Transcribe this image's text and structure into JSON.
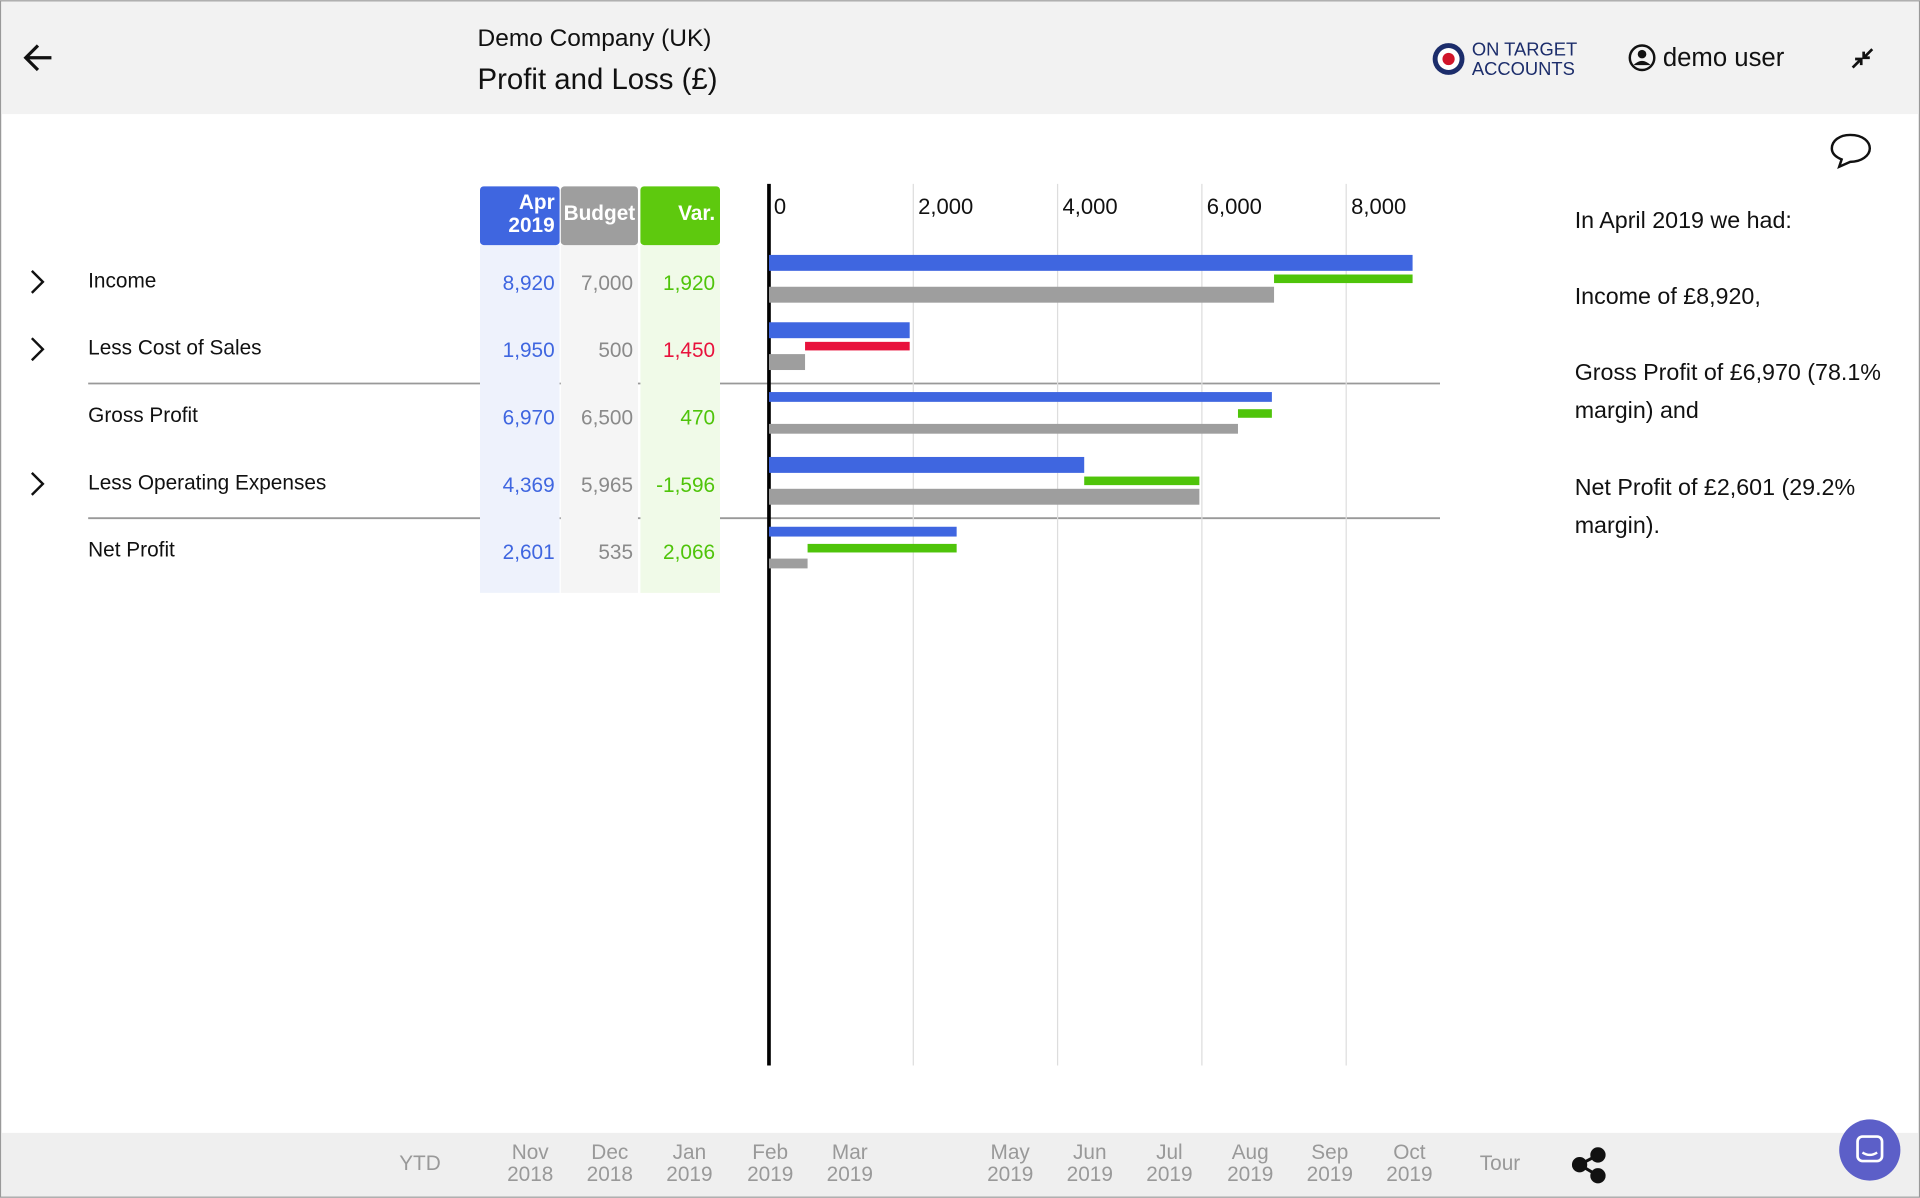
{
  "header": {
    "company": "Demo Company (UK)",
    "title": "Profit and Loss (£)",
    "brand": [
      "ON TARGET",
      "ACCOUNTS"
    ],
    "user": "demo user"
  },
  "table": {
    "columns": [
      [
        "Apr",
        "2019"
      ],
      "Budget",
      "Var."
    ],
    "rows": [
      {
        "label": "Income",
        "values": [
          8920,
          7000,
          1920
        ],
        "value_labels": [
          "8,920",
          "7,000",
          "1,920"
        ],
        "variance_color": "#4fc40a"
      },
      {
        "label": "Less Cost of Sales",
        "values": [
          1950,
          500,
          1450
        ],
        "value_labels": [
          "1,950",
          "500",
          "1,450"
        ],
        "variance_color": "#e8123c"
      },
      {
        "label": "Gross Profit",
        "values": [
          6970,
          6500,
          470
        ],
        "value_labels": [
          "6,970",
          "6,500",
          "470"
        ],
        "variance_color": "#4fc40a"
      },
      {
        "label": "Less Operating Expenses",
        "values": [
          4369,
          5965,
          -1596
        ],
        "value_labels": [
          "4,369",
          "5,965",
          "-1,596"
        ],
        "variance_color": "#4fc40a"
      },
      {
        "label": "Net Profit",
        "values": [
          2601,
          535,
          2066
        ],
        "value_labels": [
          "2,601",
          "535",
          "2,066"
        ],
        "variance_color": "#4fc40a"
      }
    ]
  },
  "chart": {
    "type": "bar",
    "xlim": [
      0,
      9300
    ],
    "xticks": [
      0,
      {
        "value": 2000,
        "label": "2,000"
      },
      {
        "value": 4000,
        "label": "4,000"
      },
      {
        "value": 6000,
        "label": "6,000"
      },
      {
        "value": 8000,
        "label": "8,000"
      }
    ],
    "grid": true,
    "colors": {
      "actual": "#3f66e0",
      "budget": "#9e9e9e"
    }
  },
  "narrative": [
    [
      "In April 2019 we had:"
    ],
    [
      "Income of £8,920,"
    ],
    [
      "Gross Profit of £6,970 (78.1%",
      "margin) and"
    ],
    [
      "Net Profit of £2,601 (29.2%",
      "margin)."
    ]
  ],
  "footer": {
    "periods": [
      [
        "YTD"
      ],
      [
        "Nov",
        "2018"
      ],
      [
        "Dec",
        "2018"
      ],
      [
        "Jan",
        "2019"
      ],
      [
        "Feb",
        "2019"
      ],
      [
        "Mar",
        "2019"
      ],
      [
        "May",
        "2019"
      ],
      [
        "Jun",
        "2019"
      ],
      [
        "Jul",
        "2019"
      ],
      [
        "Aug",
        "2019"
      ],
      [
        "Sep",
        "2019"
      ],
      [
        "Oct",
        "2019"
      ],
      [
        "Tour"
      ]
    ]
  }
}
